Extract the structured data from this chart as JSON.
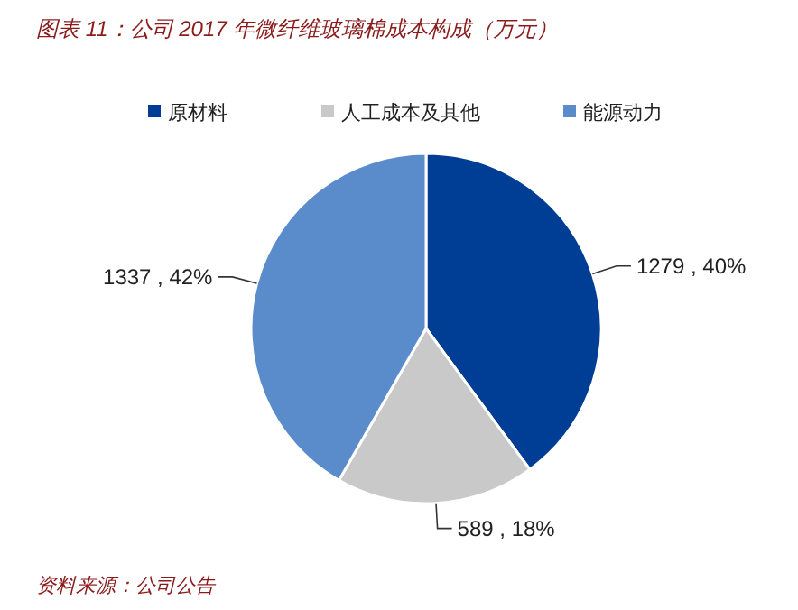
{
  "chart_data": {
    "type": "pie",
    "title": "图表 11：公司 2017 年微纤维玻璃棉成本构成（万元）",
    "categories": [
      "原材料",
      "人工成本及其他",
      "能源动力"
    ],
    "values": [
      1279,
      589,
      1337
    ],
    "colors": [
      "#003e95",
      "#c9c9c9",
      "#5a8ccc"
    ],
    "value_labels": [
      "1279 , 40%",
      "589 , 18%",
      "1337 , 42%"
    ],
    "legend": "top",
    "annotations": [
      "资料来源：公司公告"
    ]
  }
}
